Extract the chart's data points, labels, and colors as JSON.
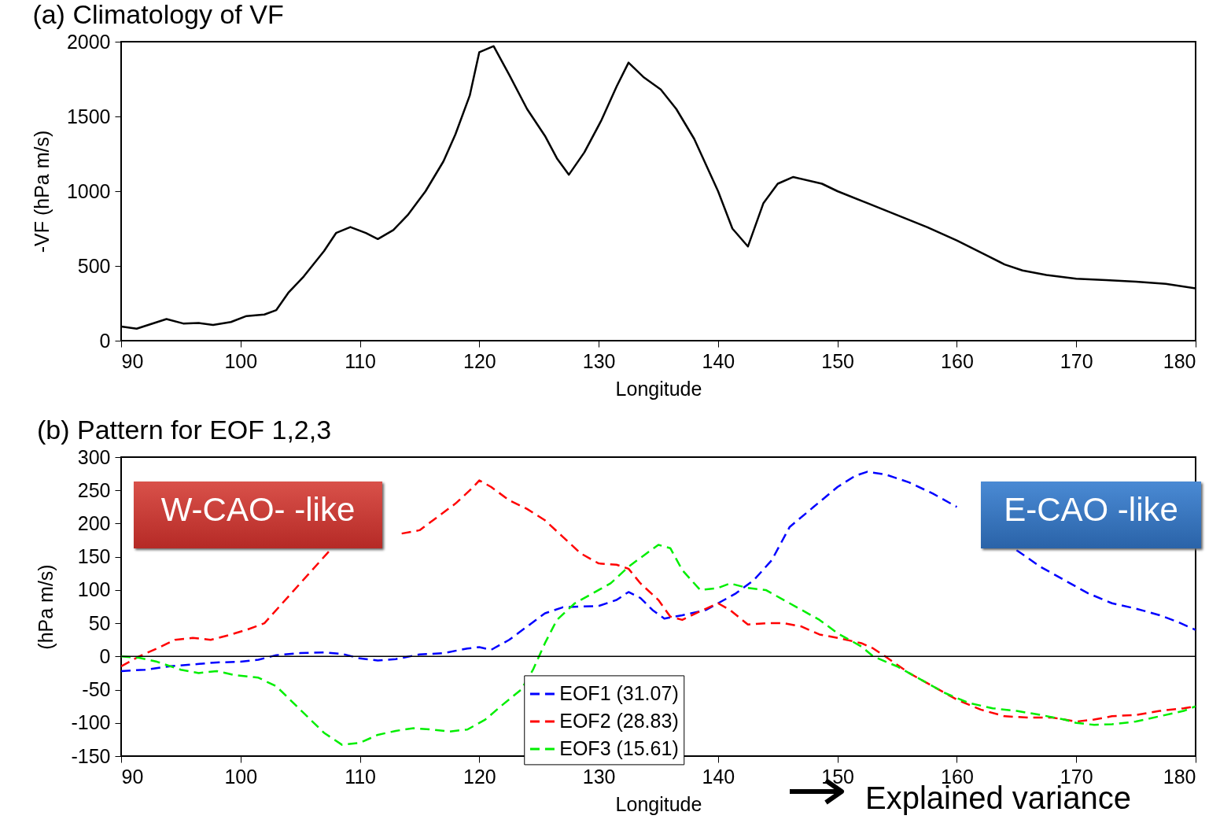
{
  "chart_data": [
    {
      "type": "line",
      "title": "(a) Climatology of VF",
      "xlabel": "Longitude",
      "ylabel": "-VF (hPa m/s)",
      "color": "#000000",
      "line_style": "solid",
      "grid": false,
      "legend": false,
      "x": [
        90,
        91.3,
        93.8,
        95.2,
        96.5,
        97.7,
        99.2,
        100.5,
        102,
        103,
        104,
        105.3,
        107,
        108,
        109.2,
        110.5,
        111.5,
        112.8,
        114,
        115.5,
        117,
        118,
        119.2,
        120,
        121.2,
        122.5,
        124,
        125.5,
        126.5,
        127.5,
        128.8,
        130.2,
        131.5,
        132.5,
        133.8,
        135.2,
        136.5,
        138,
        140,
        141.2,
        142.5,
        143.8,
        145,
        146.3,
        148.7,
        150,
        152.5,
        155,
        157.5,
        160,
        162.5,
        164,
        165.5,
        167.5,
        170,
        172.5,
        175,
        177.5,
        180
      ],
      "values": [
        95,
        80,
        145,
        115,
        118,
        105,
        125,
        165,
        175,
        205,
        320,
        430,
        600,
        720,
        760,
        720,
        680,
        740,
        840,
        1000,
        1200,
        1380,
        1640,
        1930,
        1970,
        1780,
        1550,
        1370,
        1220,
        1110,
        1260,
        1470,
        1700,
        1860,
        1760,
        1680,
        1550,
        1350,
        1000,
        750,
        630,
        920,
        1050,
        1095,
        1050,
        1000,
        920,
        840,
        760,
        670,
        570,
        510,
        470,
        440,
        415,
        405,
        395,
        380,
        350
      ],
      "xlim": [
        90,
        180
      ],
      "xticks": [
        90,
        100,
        110,
        120,
        130,
        140,
        150,
        160,
        170,
        180
      ],
      "ylim": [
        0,
        2000
      ],
      "yticks": [
        0,
        500,
        1000,
        1500,
        2000
      ]
    },
    {
      "type": "line",
      "title": "(b) Pattern for EOF 1,2,3",
      "xlabel": "Longitude",
      "ylabel": "(hPa m/s)",
      "line_style": "dashed",
      "grid": false,
      "legend": "bottom",
      "annotations": [
        "W-CAO- -like",
        "E-CAO -like",
        "Explained variance"
      ],
      "series": [
        {
          "name": "EOF1 (31.07)",
          "color": "#0000ff",
          "x": [
            90,
            92,
            94,
            96,
            98,
            100,
            101.5,
            103,
            105,
            107,
            108.5,
            110,
            111.5,
            113,
            115,
            117,
            119,
            120,
            121,
            122.5,
            124,
            125.5,
            127,
            128.5,
            130,
            131.5,
            132.5,
            133.5,
            134.5,
            135.5,
            137,
            139,
            140,
            141.5,
            143,
            144.5,
            146,
            148,
            150,
            151.5,
            152.5,
            154,
            156,
            158,
            160,
            162,
            163.5,
            165,
            167,
            169,
            171,
            173,
            175,
            177,
            178.5,
            180
          ],
          "values": [
            -22,
            -20,
            -15,
            -12,
            -9,
            -8,
            -5,
            2,
            5,
            6,
            4,
            -3,
            -6,
            -4,
            3,
            5,
            12,
            14,
            10,
            25,
            45,
            65,
            74,
            75,
            76,
            85,
            97,
            88,
            70,
            57,
            62,
            70,
            80,
            95,
            115,
            145,
            195,
            225,
            255,
            272,
            278,
            274,
            262,
            245,
            225,
            null,
            null,
            160,
            135,
            115,
            95,
            80,
            72,
            62,
            52,
            40
          ]
        },
        {
          "name": "EOF2 (28.83)",
          "color": "#ff0000",
          "x": [
            90,
            91.5,
            93,
            94.5,
            96,
            97.5,
            99,
            100.5,
            102,
            104,
            106,
            107.5,
            109,
            110.5,
            112,
            113.5,
            115,
            116.5,
            118,
            119.5,
            120,
            121,
            122.5,
            124,
            125.5,
            127,
            128.5,
            130,
            131.5,
            132.5,
            133.5,
            135,
            136,
            137,
            138.5,
            140,
            141,
            142.5,
            144,
            145.5,
            147,
            148.5,
            150,
            152,
            153,
            154,
            156,
            158,
            160,
            162,
            164,
            166,
            168,
            170,
            171.5,
            173,
            175,
            177,
            179,
            180
          ],
          "values": [
            -15,
            0,
            12,
            25,
            28,
            25,
            32,
            40,
            50,
            90,
            130,
            160,
            null,
            null,
            null,
            185,
            190,
            210,
            230,
            255,
            265,
            255,
            235,
            222,
            205,
            180,
            155,
            140,
            138,
            132,
            110,
            85,
            60,
            55,
            68,
            80,
            70,
            48,
            50,
            50,
            45,
            33,
            28,
            20,
            12,
            0,
            -25,
            -45,
            -65,
            -80,
            -90,
            -92,
            -92,
            -98,
            -95,
            -90,
            -88,
            -82,
            -78,
            -75
          ]
        },
        {
          "name": "EOF3 (15.61)",
          "color": "#00ee00",
          "x": [
            90,
            91.5,
            93,
            95,
            96.5,
            98,
            99.5,
            101.5,
            103,
            105,
            107,
            108.5,
            110,
            111.5,
            113,
            114.5,
            116,
            117.5,
            119,
            120.5,
            122,
            123.5,
            124.5,
            125.5,
            126.5,
            128,
            129.5,
            131,
            132.5,
            134,
            135,
            136,
            137,
            138.5,
            140,
            141,
            142.5,
            144,
            145.5,
            147,
            148.5,
            150,
            152,
            153,
            155,
            157,
            159,
            161,
            163,
            165,
            167,
            169,
            170,
            171.5,
            173,
            175,
            177,
            179,
            180
          ],
          "values": [
            0,
            -2,
            -8,
            -20,
            -25,
            -22,
            -28,
            -32,
            -45,
            -80,
            -115,
            -133,
            -130,
            -118,
            -112,
            -108,
            -110,
            -113,
            -110,
            -95,
            -72,
            -50,
            -20,
            20,
            55,
            80,
            95,
            110,
            135,
            155,
            168,
            163,
            130,
            100,
            103,
            110,
            103,
            100,
            85,
            70,
            55,
            35,
            15,
            0,
            -15,
            -35,
            -55,
            -70,
            -78,
            -82,
            -88,
            -95,
            -100,
            -103,
            -102,
            -98,
            -90,
            -82,
            -75
          ]
        }
      ],
      "ref_lines": [
        {
          "axis": "y",
          "value": 0,
          "color": "#000000"
        }
      ],
      "xlim": [
        90,
        180
      ],
      "xticks": [
        90,
        100,
        110,
        120,
        130,
        140,
        150,
        160,
        170,
        180
      ],
      "ylim": [
        -150,
        300
      ],
      "yticks": [
        -150,
        -100,
        -50,
        0,
        50,
        100,
        150,
        200,
        250,
        300
      ]
    }
  ]
}
